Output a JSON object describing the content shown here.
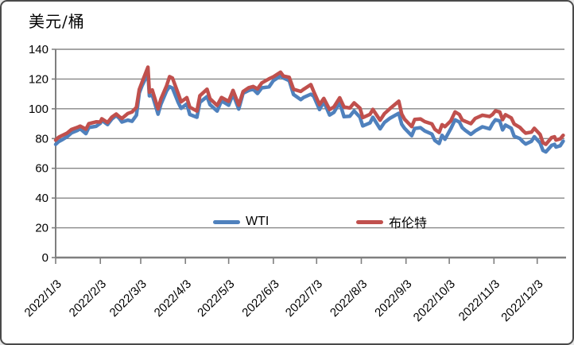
{
  "chart_data": {
    "type": "line",
    "title": "美元/桶",
    "grid": true,
    "grid_color": "#878787",
    "axis_color": "#7f7f7f",
    "legend_position": "inside bottom center",
    "y_axis": {
      "min": 0,
      "max": 140,
      "tick_interval": 20
    },
    "x_axis": {
      "tick_labels": [
        "2022/1/3",
        "2022/2/3",
        "2022/3/3",
        "2022/4/3",
        "2022/5/3",
        "2022/6/3",
        "2022/7/3",
        "2022/8/3",
        "2022/9/3",
        "2022/10/3",
        "2022/11/3",
        "2022/12/3"
      ]
    },
    "x": [
      "2022-01-03",
      "2022-01-05",
      "2022-01-07",
      "2022-01-11",
      "2022-01-14",
      "2022-01-18",
      "2022-01-20",
      "2022-01-24",
      "2022-01-26",
      "2022-01-31",
      "2022-02-03",
      "2022-02-04",
      "2022-02-08",
      "2022-02-11",
      "2022-02-14",
      "2022-02-16",
      "2022-02-18",
      "2022-02-22",
      "2022-02-25",
      "2022-02-28",
      "2022-03-02",
      "2022-03-04",
      "2022-03-08",
      "2022-03-09",
      "2022-03-11",
      "2022-03-15",
      "2022-03-17",
      "2022-03-21",
      "2022-03-23",
      "2022-03-25",
      "2022-03-29",
      "2022-03-31",
      "2022-04-04",
      "2022-04-06",
      "2022-04-11",
      "2022-04-13",
      "2022-04-18",
      "2022-04-20",
      "2022-04-25",
      "2022-04-28",
      "2022-05-03",
      "2022-05-06",
      "2022-05-10",
      "2022-05-13",
      "2022-05-17",
      "2022-05-20",
      "2022-05-23",
      "2022-05-26",
      "2022-05-31",
      "2022-06-03",
      "2022-06-08",
      "2022-06-10",
      "2022-06-14",
      "2022-06-17",
      "2022-06-22",
      "2022-06-24",
      "2022-06-29",
      "2022-07-01",
      "2022-07-05",
      "2022-07-08",
      "2022-07-12",
      "2022-07-15",
      "2022-07-19",
      "2022-07-22",
      "2022-07-26",
      "2022-07-29",
      "2022-08-02",
      "2022-08-04",
      "2022-08-09",
      "2022-08-11",
      "2022-08-16",
      "2022-08-19",
      "2022-08-23",
      "2022-08-29",
      "2022-08-31",
      "2022-09-02",
      "2022-09-07",
      "2022-09-09",
      "2022-09-13",
      "2022-09-16",
      "2022-09-21",
      "2022-09-23",
      "2022-09-26",
      "2022-09-28",
      "2022-09-30",
      "2022-10-04",
      "2022-10-07",
      "2022-10-10",
      "2022-10-12",
      "2022-10-14",
      "2022-10-18",
      "2022-10-21",
      "2022-10-26",
      "2022-10-31",
      "2022-11-02",
      "2022-11-04",
      "2022-11-07",
      "2022-11-09",
      "2022-11-11",
      "2022-11-15",
      "2022-11-17",
      "2022-11-21",
      "2022-11-23",
      "2022-11-25",
      "2022-11-29",
      "2022-12-01",
      "2022-12-05",
      "2022-12-07",
      "2022-12-09",
      "2022-12-13",
      "2022-12-15",
      "2022-12-16",
      "2022-12-19",
      "2022-12-21"
    ],
    "series": [
      {
        "name": "WTI",
        "color": "#4F81BD",
        "values": [
          76.1,
          77.9,
          78.9,
          81.2,
          83.8,
          85.4,
          86.6,
          83.3,
          87.4,
          88.2,
          90.3,
          92.3,
          89.4,
          93.1,
          95.5,
          93.7,
          91.1,
          92.4,
          91.6,
          95.7,
          110.6,
          115.7,
          123.7,
          108.7,
          109.3,
          96.4,
          103.0,
          112.1,
          114.9,
          113.9,
          104.2,
          100.3,
          103.3,
          96.2,
          94.3,
          104.3,
          108.2,
          102.8,
          98.5,
          105.4,
          102.4,
          109.8,
          99.8,
          110.5,
          112.4,
          113.2,
          110.3,
          114.1,
          114.7,
          118.9,
          122.1,
          120.7,
          118.9,
          109.6,
          106.2,
          107.6,
          109.8,
          108.4,
          99.5,
          104.8,
          95.8,
          97.6,
          104.2,
          94.7,
          95.0,
          98.6,
          94.4,
          88.5,
          90.5,
          94.3,
          86.5,
          90.8,
          93.7,
          97.0,
          89.6,
          86.9,
          81.9,
          86.8,
          87.3,
          85.1,
          83.0,
          78.7,
          76.7,
          82.2,
          79.5,
          86.5,
          92.6,
          91.1,
          87.3,
          85.6,
          82.8,
          85.1,
          87.9,
          86.5,
          90.0,
          92.6,
          91.8,
          85.8,
          89.0,
          86.9,
          81.6,
          80.0,
          77.9,
          76.3,
          78.2,
          81.2,
          77.0,
          72.0,
          71.0,
          75.4,
          76.1,
          74.3,
          75.2,
          78.3
        ]
      },
      {
        "name": "布伦特",
        "color": "#C0504D",
        "values": [
          79.0,
          80.8,
          81.8,
          83.7,
          86.1,
          87.5,
          88.4,
          86.3,
          90.0,
          91.2,
          91.1,
          93.3,
          90.8,
          94.4,
          96.5,
          94.8,
          93.5,
          96.8,
          97.9,
          101.0,
          113.0,
          118.1,
          128.0,
          111.1,
          112.7,
          99.9,
          106.6,
          115.6,
          121.6,
          120.7,
          110.2,
          104.7,
          107.5,
          101.1,
          98.5,
          108.8,
          113.2,
          106.8,
          102.3,
          107.6,
          105.0,
          112.4,
          102.5,
          111.6,
          114.2,
          115.0,
          113.4,
          117.4,
          120.1,
          121.5,
          124.6,
          122.0,
          121.2,
          113.1,
          111.7,
          113.1,
          116.3,
          111.6,
          102.8,
          107.0,
          99.5,
          101.2,
          107.4,
          101.2,
          100.5,
          104.0,
          100.5,
          94.1,
          96.3,
          99.6,
          92.3,
          96.7,
          100.2,
          105.1,
          96.5,
          93.0,
          88.0,
          92.8,
          93.2,
          91.4,
          89.8,
          86.2,
          84.1,
          89.3,
          88.0,
          91.8,
          97.9,
          96.2,
          92.5,
          91.6,
          90.0,
          93.5,
          95.7,
          94.8,
          96.2,
          98.6,
          97.9,
          92.7,
          96.0,
          93.9,
          89.8,
          87.5,
          85.4,
          83.6,
          84.3,
          86.9,
          82.7,
          77.2,
          76.1,
          80.7,
          81.2,
          79.0,
          79.8,
          82.2
        ]
      }
    ]
  }
}
